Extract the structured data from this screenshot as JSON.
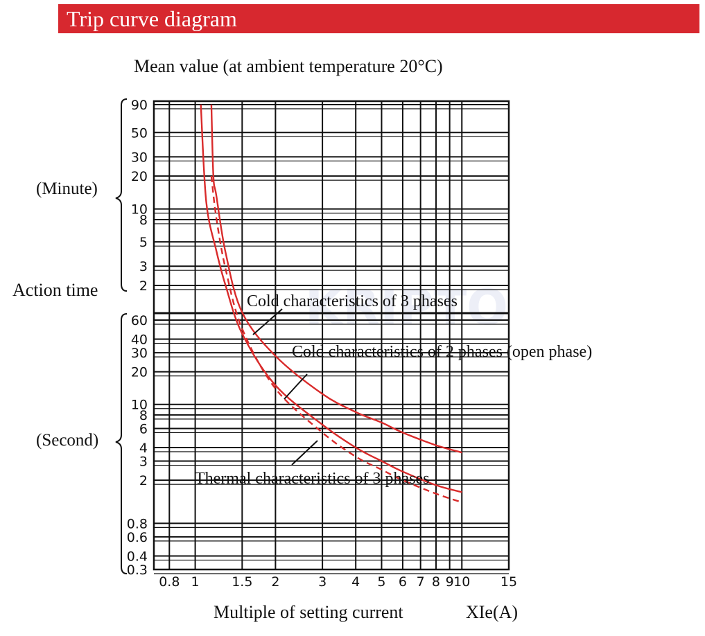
{
  "header": {
    "title": "Trip curve diagram",
    "color": "#d7282f"
  },
  "chart_data": {
    "type": "line",
    "title": "Mean value (at ambient temperature 20°C)",
    "ylabel": "Action time",
    "xlabel": "Multiple of setting current",
    "x_unit": "XIe(A)",
    "x_scale": "log",
    "y_scale": "log",
    "grid": true,
    "y_unit_groups": [
      {
        "label": "(Minute)",
        "ticks": [
          "90",
          "50",
          "30",
          "20",
          "10",
          "8",
          "5",
          "3",
          "2"
        ]
      },
      {
        "label": "(Second)",
        "ticks": [
          "60",
          "40",
          "30",
          "20",
          "10",
          "8",
          "6",
          "4",
          "3",
          "2",
          "0.8",
          "0.6",
          "0.4",
          "0.3"
        ]
      }
    ],
    "x_ticks": [
      "0.8",
      "1",
      "1.5",
      "2",
      "3",
      "4",
      "5",
      "6",
      "7",
      "8",
      "9",
      "10",
      "15"
    ],
    "x_range": [
      0.7,
      15
    ],
    "series_color": "#d92b2b",
    "series": [
      {
        "name": "Cold characteristics of 3 phases",
        "style": "solid",
        "x": [
          1.15,
          1.17,
          1.2,
          1.3,
          1.5,
          2,
          3,
          4,
          5,
          6,
          8,
          10
        ],
        "y_seconds": [
          5400,
          1200,
          800,
          240,
          70,
          28,
          12.5,
          8.5,
          6.8,
          5.5,
          4.2,
          3.6
        ]
      },
      {
        "name": "Cold characteristics of 2 phases (open phase)",
        "style": "solid",
        "x": [
          1.05,
          1.1,
          1.2,
          1.3,
          1.5,
          2,
          3,
          4,
          5,
          6,
          8,
          10
        ],
        "y_seconds": [
          5400,
          700,
          250,
          120,
          45,
          15,
          6.5,
          4,
          3,
          2.4,
          1.8,
          1.55
        ]
      },
      {
        "name": "Thermal characteristics of 3 phases",
        "style": "dashed",
        "x": [
          1.15,
          1.2,
          1.3,
          1.5,
          2,
          3,
          4,
          5,
          6,
          8,
          10
        ],
        "y_seconds": [
          1200,
          500,
          170,
          50,
          14,
          5.5,
          3.3,
          2.5,
          2.0,
          1.5,
          1.25
        ]
      }
    ],
    "annotations": [
      "Cold characteristics of 3 phases",
      "Cold characteristics of 2 phases (open phase)",
      "Thermal characteristics of 3 phases"
    ],
    "watermark": "KRIPTO"
  }
}
